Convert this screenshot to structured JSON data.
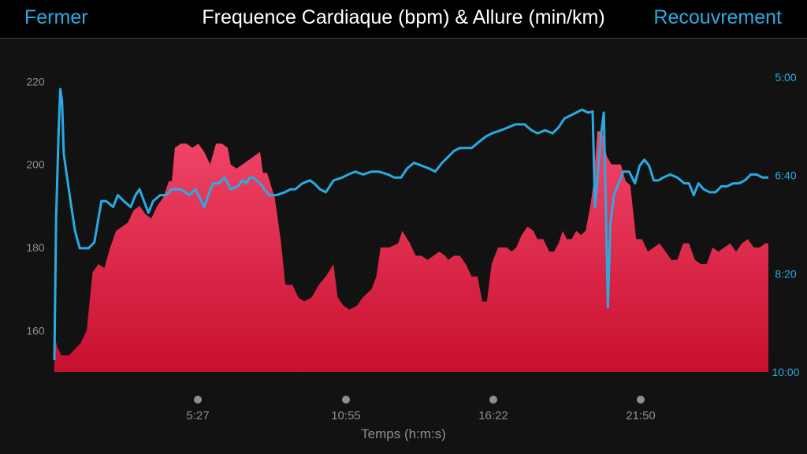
{
  "header": {
    "close_label": "Fermer",
    "title": "Frequence Cardiaque (bpm) & Allure (min/km)",
    "recovery_label": "Recouvrement"
  },
  "colors": {
    "hr_fill_top": "#f2466a",
    "hr_fill_bottom": "#c8102e",
    "pace_line": "#29abe2",
    "left_axis_text": "#8e8e93",
    "right_axis_text": "#29abe2",
    "background": "#121212"
  },
  "chart_data": {
    "type": "area",
    "xlabel": "Temps (h:m:s)",
    "x_ticks": [
      "5:27",
      "10:55",
      "16:22",
      "21:50"
    ],
    "x_tick_seconds": [
      327,
      655,
      982,
      1310
    ],
    "xlim": [
      0,
      1590
    ],
    "grid": false,
    "y_left": {
      "label": "",
      "ticks": [
        "220",
        "200",
        "180",
        "160"
      ],
      "tick_values": [
        220,
        200,
        180,
        160
      ],
      "ylim": [
        150,
        221
      ]
    },
    "y_right": {
      "label": "",
      "ticks": [
        "5:00",
        "6:40",
        "8:20",
        "10:00"
      ],
      "tick_values_min": [
        5.0,
        6.6667,
        8.3333,
        10.0
      ],
      "ylim_min": [
        5.0,
        10.0
      ]
    },
    "series": [
      {
        "axis": "left",
        "kind": "area",
        "points": [
          [
            0,
            159
          ],
          [
            5,
            156
          ],
          [
            12,
            154
          ],
          [
            25,
            154
          ],
          [
            38,
            156
          ],
          [
            45,
            157
          ],
          [
            55,
            160
          ],
          [
            65,
            174
          ],
          [
            75,
            176
          ],
          [
            85,
            175
          ],
          [
            95,
            180
          ],
          [
            105,
            184
          ],
          [
            115,
            185
          ],
          [
            125,
            186
          ],
          [
            135,
            189
          ],
          [
            145,
            190
          ],
          [
            155,
            188
          ],
          [
            165,
            187
          ],
          [
            175,
            190
          ],
          [
            185,
            192
          ],
          [
            195,
            196
          ],
          [
            200,
            196
          ],
          [
            205,
            204
          ],
          [
            215,
            205
          ],
          [
            225,
            205
          ],
          [
            235,
            204
          ],
          [
            245,
            205
          ],
          [
            255,
            203
          ],
          [
            265,
            200
          ],
          [
            275,
            205
          ],
          [
            285,
            205
          ],
          [
            295,
            204
          ],
          [
            300,
            200
          ],
          [
            310,
            199
          ],
          [
            320,
            200
          ],
          [
            330,
            201
          ],
          [
            340,
            202
          ],
          [
            350,
            203
          ],
          [
            355,
            198
          ],
          [
            362,
            198
          ],
          [
            375,
            192
          ],
          [
            385,
            182
          ],
          [
            393,
            171
          ],
          [
            405,
            171
          ],
          [
            415,
            168
          ],
          [
            425,
            167
          ],
          [
            438,
            168
          ],
          [
            450,
            171
          ],
          [
            462,
            173
          ],
          [
            475,
            176
          ],
          [
            482,
            168
          ],
          [
            492,
            166
          ],
          [
            502,
            165
          ],
          [
            515,
            166
          ],
          [
            525,
            168
          ],
          [
            540,
            170
          ],
          [
            548,
            173
          ],
          [
            555,
            180
          ],
          [
            570,
            180
          ],
          [
            585,
            181
          ],
          [
            592,
            184
          ],
          [
            605,
            181
          ],
          [
            615,
            178
          ],
          [
            625,
            178
          ],
          [
            635,
            177
          ],
          [
            645,
            178
          ],
          [
            655,
            179
          ],
          [
            665,
            178
          ],
          [
            670,
            177
          ],
          [
            680,
            178
          ],
          [
            690,
            178
          ],
          [
            700,
            176
          ],
          [
            710,
            173
          ],
          [
            720,
            173
          ],
          [
            728,
            167
          ],
          [
            736,
            167
          ],
          [
            744,
            176
          ],
          [
            755,
            180
          ],
          [
            770,
            180
          ],
          [
            778,
            179
          ],
          [
            786,
            180
          ],
          [
            795,
            183
          ],
          [
            805,
            185
          ],
          [
            815,
            184
          ],
          [
            822,
            182
          ],
          [
            832,
            182
          ],
          [
            842,
            179
          ],
          [
            850,
            179
          ],
          [
            858,
            181
          ],
          [
            865,
            184
          ],
          [
            872,
            182
          ],
          [
            880,
            182
          ],
          [
            888,
            184
          ],
          [
            896,
            183
          ],
          [
            904,
            184
          ],
          [
            912,
            190
          ],
          [
            918,
            196
          ],
          [
            924,
            208
          ],
          [
            932,
            208
          ],
          [
            940,
            202
          ],
          [
            948,
            200
          ],
          [
            956,
            200
          ],
          [
            964,
            200
          ],
          [
            972,
            196
          ],
          [
            980,
            195
          ],
          [
            990,
            182
          ],
          [
            1000,
            182
          ],
          [
            1010,
            179
          ],
          [
            1020,
            180
          ],
          [
            1030,
            181
          ],
          [
            1040,
            179
          ],
          [
            1050,
            177
          ],
          [
            1060,
            177
          ],
          [
            1070,
            181
          ],
          [
            1080,
            181
          ],
          [
            1090,
            177
          ],
          [
            1100,
            176
          ],
          [
            1110,
            176
          ],
          [
            1120,
            180
          ],
          [
            1130,
            179
          ],
          [
            1140,
            180
          ],
          [
            1150,
            181
          ],
          [
            1160,
            179
          ],
          [
            1170,
            181
          ],
          [
            1180,
            182
          ],
          [
            1190,
            180
          ],
          [
            1200,
            180
          ],
          [
            1210,
            181
          ],
          [
            1215,
            181
          ]
        ]
      },
      {
        "axis": "right",
        "kind": "line",
        "points": [
          [
            0,
            9.8
          ],
          [
            3,
            7.4
          ],
          [
            7,
            6.0
          ],
          [
            10,
            5.2
          ],
          [
            13,
            5.4
          ],
          [
            16,
            6.3
          ],
          [
            23,
            6.8
          ],
          [
            29,
            7.2
          ],
          [
            35,
            7.6
          ],
          [
            43,
            7.9
          ],
          [
            52,
            7.9
          ],
          [
            58,
            7.9
          ],
          [
            68,
            7.8
          ],
          [
            80,
            7.1
          ],
          [
            88,
            7.1
          ],
          [
            100,
            7.2
          ],
          [
            108,
            7.0
          ],
          [
            118,
            7.1
          ],
          [
            130,
            7.2
          ],
          [
            138,
            7.0
          ],
          [
            145,
            6.9
          ],
          [
            160,
            7.3
          ],
          [
            168,
            7.1
          ],
          [
            180,
            7.0
          ],
          [
            190,
            7.0
          ],
          [
            200,
            6.9
          ],
          [
            215,
            6.9
          ],
          [
            230,
            7.0
          ],
          [
            240,
            6.9
          ],
          [
            255,
            7.2
          ],
          [
            262,
            7.0
          ],
          [
            270,
            6.8
          ],
          [
            280,
            6.8
          ],
          [
            290,
            6.7
          ],
          [
            300,
            6.9
          ],
          [
            312,
            6.85
          ],
          [
            320,
            6.75
          ],
          [
            327,
            6.8
          ],
          [
            332,
            6.7
          ],
          [
            338,
            6.7
          ],
          [
            350,
            6.8
          ],
          [
            365,
            7.0
          ],
          [
            378,
            7.0
          ],
          [
            392,
            6.95
          ],
          [
            402,
            6.9
          ],
          [
            410,
            6.9
          ],
          [
            422,
            6.8
          ],
          [
            435,
            6.75
          ],
          [
            442,
            6.8
          ],
          [
            452,
            6.9
          ],
          [
            462,
            6.95
          ],
          [
            475,
            6.75
          ],
          [
            490,
            6.7
          ],
          [
            500,
            6.65
          ],
          [
            512,
            6.6
          ],
          [
            525,
            6.65
          ],
          [
            540,
            6.6
          ],
          [
            552,
            6.6
          ],
          [
            568,
            6.65
          ],
          [
            578,
            6.7
          ],
          [
            590,
            6.7
          ],
          [
            600,
            6.55
          ],
          [
            612,
            6.45
          ],
          [
            625,
            6.5
          ],
          [
            638,
            6.55
          ],
          [
            648,
            6.6
          ],
          [
            660,
            6.45
          ],
          [
            670,
            6.35
          ],
          [
            680,
            6.25
          ],
          [
            690,
            6.2
          ],
          [
            710,
            6.2
          ],
          [
            722,
            6.1
          ],
          [
            735,
            6.0
          ],
          [
            745,
            5.95
          ],
          [
            760,
            5.9
          ],
          [
            772,
            5.85
          ],
          [
            785,
            5.8
          ],
          [
            800,
            5.8
          ],
          [
            812,
            5.9
          ],
          [
            822,
            5.95
          ],
          [
            835,
            5.9
          ],
          [
            848,
            5.95
          ],
          [
            858,
            5.85
          ],
          [
            868,
            5.7
          ],
          [
            878,
            5.65
          ],
          [
            888,
            5.6
          ],
          [
            898,
            5.55
          ],
          [
            908,
            5.6
          ],
          [
            916,
            5.58
          ],
          [
            920,
            7.2
          ],
          [
            926,
            6.5
          ],
          [
            930,
            6.0
          ],
          [
            935,
            5.6
          ],
          [
            942,
            8.9
          ],
          [
            946,
            7.5
          ],
          [
            952,
            7.0
          ],
          [
            960,
            6.8
          ],
          [
            968,
            6.6
          ],
          [
            978,
            6.6
          ],
          [
            988,
            6.8
          ],
          [
            996,
            6.5
          ],
          [
            1004,
            6.4
          ],
          [
            1012,
            6.5
          ],
          [
            1020,
            6.75
          ],
          [
            1028,
            6.75
          ],
          [
            1036,
            6.7
          ],
          [
            1048,
            6.65
          ],
          [
            1060,
            6.7
          ],
          [
            1072,
            6.8
          ],
          [
            1080,
            6.8
          ],
          [
            1088,
            7.0
          ],
          [
            1096,
            6.8
          ],
          [
            1105,
            6.9
          ],
          [
            1115,
            6.95
          ],
          [
            1125,
            6.95
          ],
          [
            1135,
            6.85
          ],
          [
            1145,
            6.85
          ],
          [
            1155,
            6.8
          ],
          [
            1165,
            6.8
          ],
          [
            1175,
            6.75
          ],
          [
            1185,
            6.65
          ],
          [
            1195,
            6.65
          ],
          [
            1205,
            6.7
          ],
          [
            1215,
            6.7
          ]
        ]
      }
    ]
  }
}
